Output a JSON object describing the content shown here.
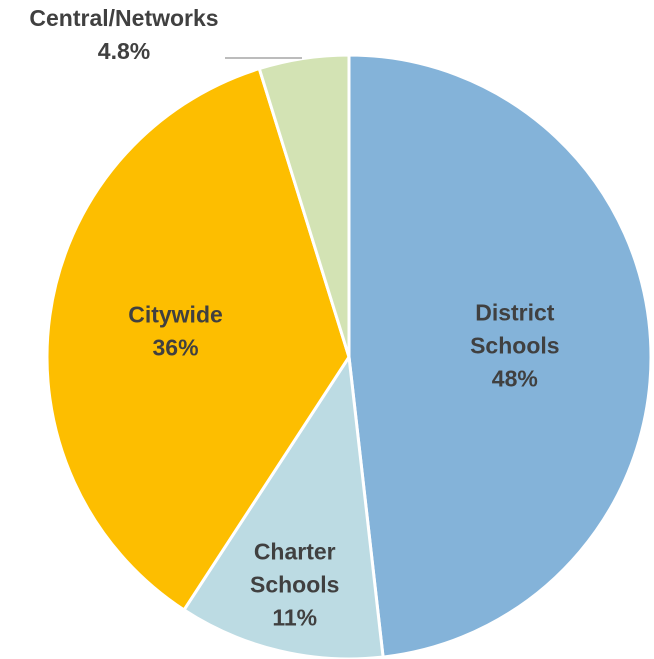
{
  "chart_data": {
    "type": "pie",
    "start_angle_deg": 0,
    "direction": "clockwise",
    "slices": [
      {
        "name": "District\nSchools",
        "label": "48%",
        "value": 48.2,
        "color": "#84b3d9"
      },
      {
        "name": "Charter\nSchools",
        "label": "11%",
        "value": 11.0,
        "color": "#bcdbe3"
      },
      {
        "name": "Citywide",
        "label": "36%",
        "value": 36.0,
        "color": "#fdbe00"
      },
      {
        "name": "Central/Networks",
        "label": "4.8%",
        "value": 4.8,
        "color": "#d3e3b4"
      }
    ]
  }
}
